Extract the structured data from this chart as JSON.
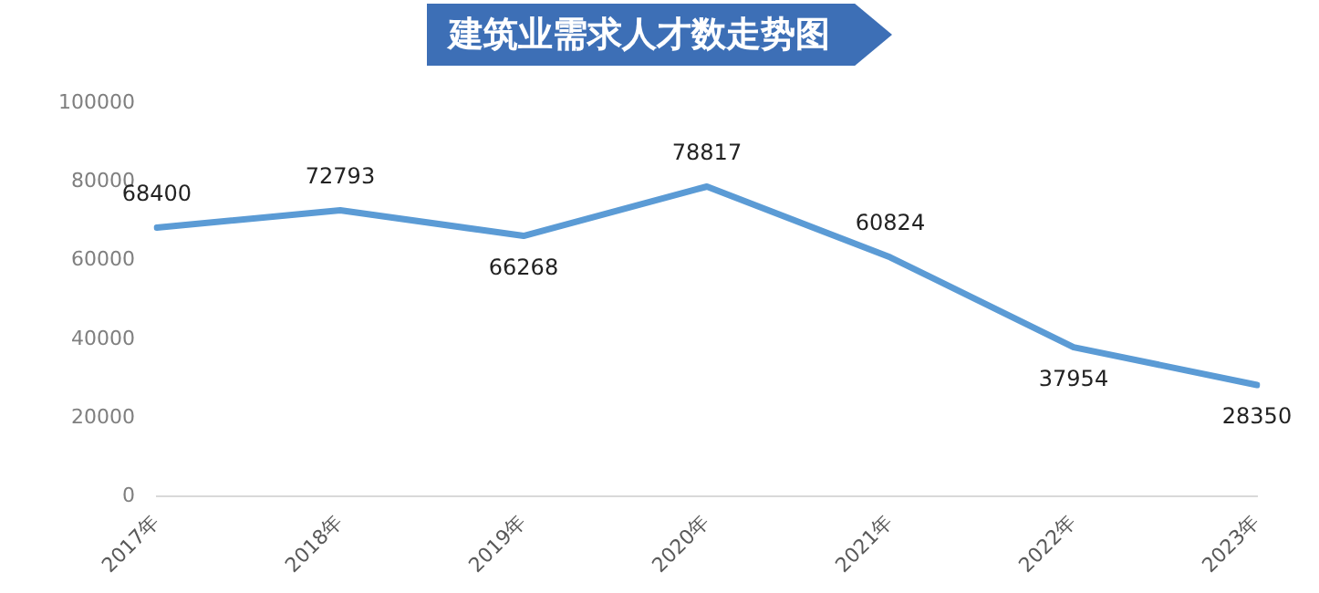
{
  "chart_data": {
    "type": "line",
    "title": "建筑业需求人才数走势图",
    "categories": [
      "2017年",
      "2018年",
      "2019年",
      "2020年",
      "2021年",
      "2022年",
      "2023年"
    ],
    "series": [
      {
        "color": "#5b9bd5",
        "values": [
          68400,
          72793,
          66268,
          78817,
          60824,
          37954,
          28350
        ]
      }
    ],
    "ylim": [
      0,
      100000
    ],
    "yticks": [
      0,
      20000,
      40000,
      60000,
      80000,
      100000
    ],
    "grid": false,
    "legend": false,
    "marker": "none",
    "line_style": "solid",
    "data_labels": true
  }
}
